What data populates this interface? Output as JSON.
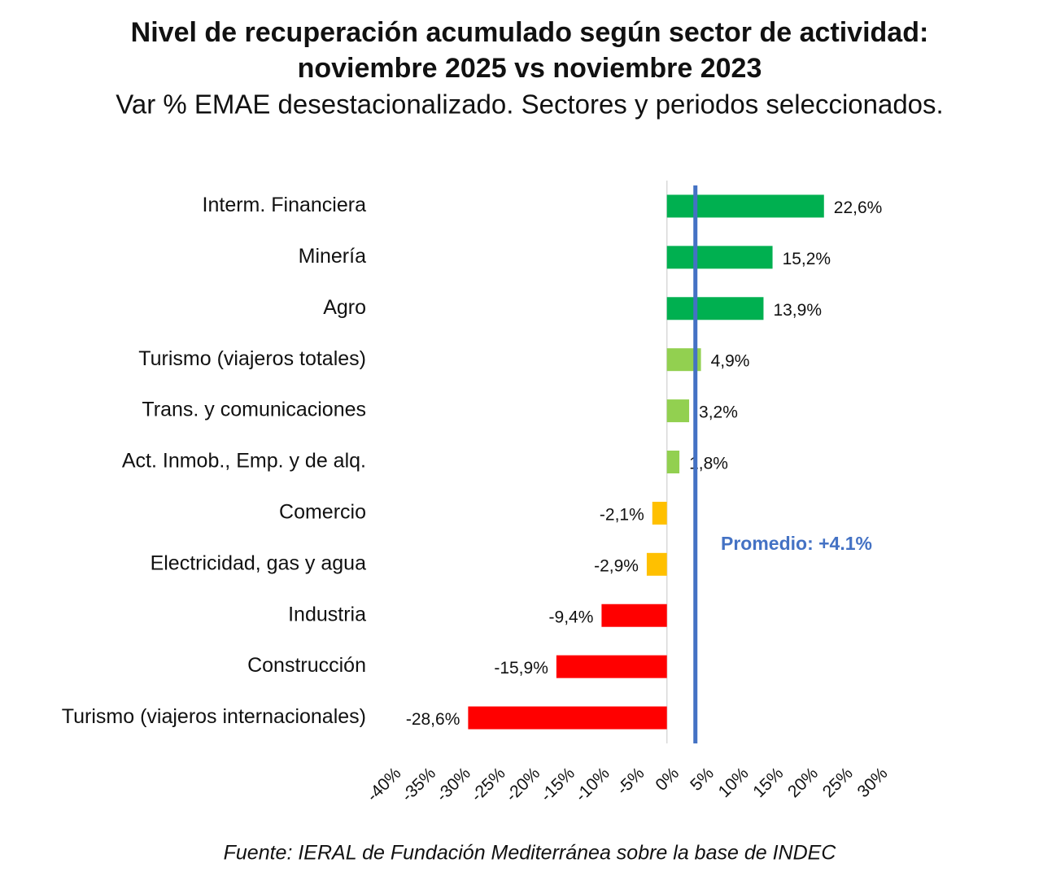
{
  "chart_data": {
    "type": "bar",
    "orientation": "horizontal",
    "title": [
      "Nivel de recuperación acumulado según sector de actividad:",
      "noviembre 2025 vs noviembre 2023"
    ],
    "subtitle": "Var % EMAE desestacionalizado. Sectores y periodos seleccionados.",
    "source": "Fuente: IERAL de Fundación Mediterránea sobre la base de INDEC",
    "categories": [
      "Interm. Financiera",
      "Minería",
      "Agro",
      "Turismo (viajeros totales)",
      "Trans. y comunicaciones",
      "Act. Inmob., Emp. y de alq.",
      "Comercio",
      "Electricidad, gas y agua",
      "Industria",
      "Construcción",
      "Turismo (viajeros internacionales)"
    ],
    "values": [
      22.6,
      15.2,
      13.9,
      4.9,
      3.2,
      1.8,
      -2.1,
      -2.9,
      -9.4,
      -15.9,
      -28.6
    ],
    "value_labels": [
      "22,6%",
      "15,2%",
      "13,9%",
      "4,9%",
      "3,2%",
      "1,8%",
      "-2,1%",
      "-2,9%",
      "-9,4%",
      "-15,9%",
      "-28,6%"
    ],
    "colors": [
      "#00b050",
      "#00b050",
      "#00b050",
      "#92d050",
      "#92d050",
      "#92d050",
      "#ffc000",
      "#ffc000",
      "#ff0000",
      "#ff0000",
      "#ff0000"
    ],
    "xlim": [
      -40,
      30
    ],
    "xticks": [
      {
        "value": -40,
        "label": "-40%"
      },
      {
        "value": -35,
        "label": "-35%"
      },
      {
        "value": -30,
        "label": "-30%"
      },
      {
        "value": -25,
        "label": "-25%"
      },
      {
        "value": -20,
        "label": "-20%"
      },
      {
        "value": -15,
        "label": "-15%"
      },
      {
        "value": -10,
        "label": "-10%"
      },
      {
        "value": -5,
        "label": "-5%"
      },
      {
        "value": 0,
        "label": "0%"
      },
      {
        "value": 5,
        "label": "5%"
      },
      {
        "value": 10,
        "label": "10%"
      },
      {
        "value": 15,
        "label": "15%"
      },
      {
        "value": 20,
        "label": "20%"
      },
      {
        "value": 25,
        "label": "25%"
      },
      {
        "value": 30,
        "label": "30%"
      }
    ],
    "reference_line": {
      "value": 4.1,
      "label": "Promedio: +4.1%",
      "color": "#4472c4"
    }
  }
}
